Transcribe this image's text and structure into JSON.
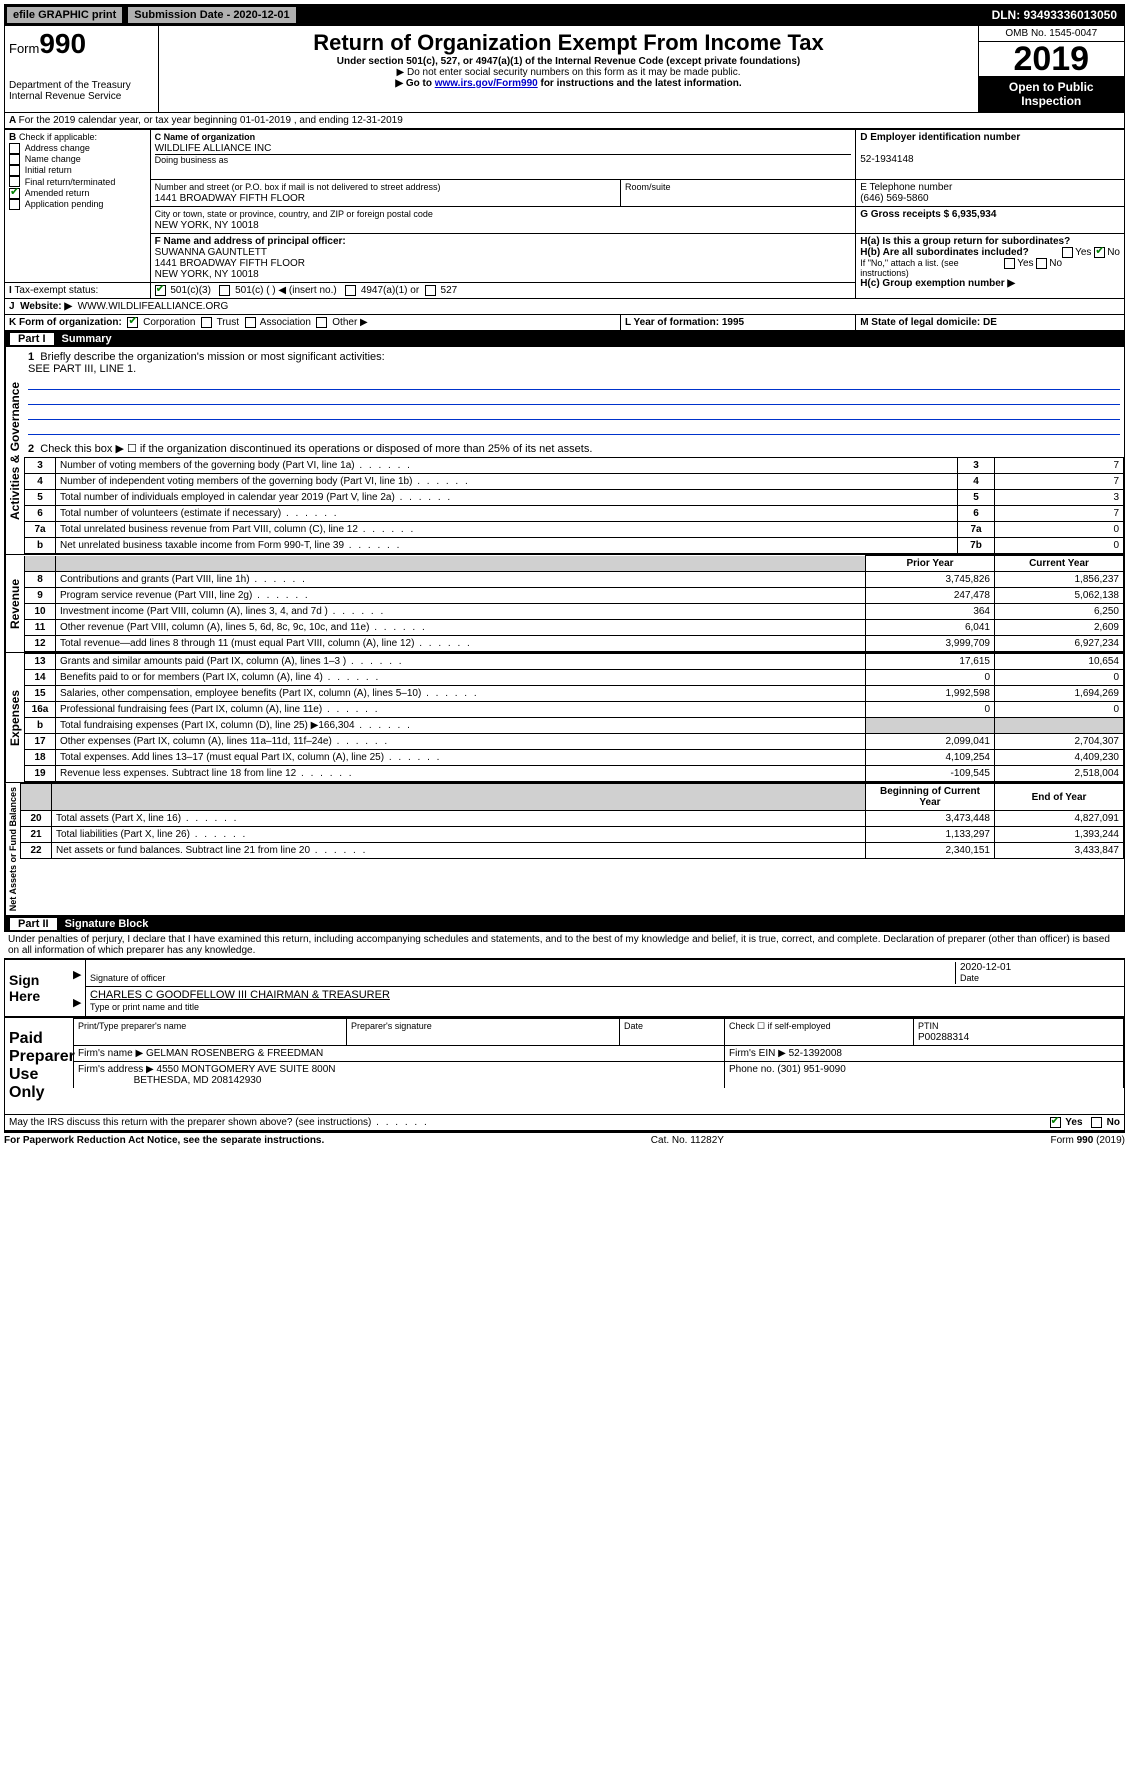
{
  "topbar": {
    "efile": "efile GRAPHIC print",
    "submission_label": "Submission Date - 2020-12-01",
    "dln": "DLN: 93493336013050"
  },
  "header": {
    "form_label": "Form",
    "form_number": "990",
    "dept": "Department of the Treasury",
    "irs": "Internal Revenue Service",
    "title": "Return of Organization Exempt From Income Tax",
    "subtitle": "Under section 501(c), 527, or 4947(a)(1) of the Internal Revenue Code (except private foundations)",
    "note1": "▶ Do not enter social security numbers on this form as it may be made public.",
    "note2_pre": "▶ Go to ",
    "note2_link": "www.irs.gov/Form990",
    "note2_post": " for instructions and the latest information.",
    "omb": "OMB No. 1545-0047",
    "year": "2019",
    "open": "Open to Public Inspection"
  },
  "line_a": "For the 2019 calendar year, or tax year beginning 01-01-2019    , and ending 12-31-2019",
  "box_b": {
    "label": "Check if applicable:",
    "items": [
      "Address change",
      "Name change",
      "Initial return",
      "Final return/terminated",
      "Amended return",
      "Application pending"
    ],
    "checked_index": 4
  },
  "box_c": {
    "name_label": "C Name of organization",
    "name": "WILDLIFE ALLIANCE INC",
    "dba": "Doing business as",
    "addr_label": "Number and street (or P.O. box if mail is not delivered to street address)",
    "addr": "1441 BROADWAY FIFTH FLOOR",
    "room": "Room/suite",
    "city_label": "City or town, state or province, country, and ZIP or foreign postal code",
    "city": "NEW YORK, NY  10018"
  },
  "box_d": {
    "label": "D Employer identification number",
    "value": "52-1934148"
  },
  "box_e": {
    "label": "E Telephone number",
    "value": "(646) 569-5860"
  },
  "box_g": {
    "label": "G Gross receipts $ 6,935,934"
  },
  "box_f": {
    "label": "F  Name and address of principal officer:",
    "name": "SUWANNA GAUNTLETT",
    "addr1": "1441 BROADWAY FIFTH FLOOR",
    "addr2": "NEW YORK, NY  10018"
  },
  "box_h": {
    "a": "H(a)  Is this a group return for subordinates?",
    "b": "H(b)  Are all subordinates included?",
    "note": "If \"No,\" attach a list. (see instructions)",
    "c": "H(c)  Group exemption number ▶",
    "yes": "Yes",
    "no": "No"
  },
  "box_i": {
    "label": "Tax-exempt status:",
    "opts": [
      "501(c)(3)",
      "501(c) (   ) ◀ (insert no.)",
      "4947(a)(1) or",
      "527"
    ]
  },
  "box_j": {
    "label": "Website: ▶",
    "value": "WWW.WILDLIFEALLIANCE.ORG"
  },
  "box_k": {
    "label": "K Form of organization:",
    "opts": [
      "Corporation",
      "Trust",
      "Association",
      "Other ▶"
    ]
  },
  "box_l": {
    "label": "L Year of formation: 1995"
  },
  "box_m": {
    "label": "M State of legal domicile: DE"
  },
  "part1": {
    "bar": "Part I",
    "title": "Summary",
    "q1": "Briefly describe the organization's mission or most significant activities:",
    "q1v": "SEE PART III, LINE 1.",
    "q2": "Check this box ▶ ☐  if the organization discontinued its operations or disposed of more than 25% of its net assets.",
    "rows_single": [
      {
        "n": "3",
        "t": "Number of voting members of the governing body (Part VI, line 1a)",
        "b": "3",
        "v": "7"
      },
      {
        "n": "4",
        "t": "Number of independent voting members of the governing body (Part VI, line 1b)",
        "b": "4",
        "v": "7"
      },
      {
        "n": "5",
        "t": "Total number of individuals employed in calendar year 2019 (Part V, line 2a)",
        "b": "5",
        "v": "3"
      },
      {
        "n": "6",
        "t": "Total number of volunteers (estimate if necessary)",
        "b": "6",
        "v": "7"
      },
      {
        "n": "7a",
        "t": "Total unrelated business revenue from Part VIII, column (C), line 12",
        "b": "7a",
        "v": "0"
      },
      {
        "n": "b",
        "t": "Net unrelated business taxable income from Form 990-T, line 39",
        "b": "7b",
        "v": "0"
      }
    ],
    "col_headers": {
      "prior": "Prior Year",
      "current": "Current Year",
      "boy": "Beginning of Current Year",
      "eoy": "End of Year"
    },
    "vert": {
      "ag": "Activities & Governance",
      "rev": "Revenue",
      "exp": "Expenses",
      "na": "Net Assets or Fund Balances"
    },
    "rows_two": [
      {
        "n": "8",
        "t": "Contributions and grants (Part VIII, line 1h)",
        "p": "3,745,826",
        "c": "1,856,237"
      },
      {
        "n": "9",
        "t": "Program service revenue (Part VIII, line 2g)",
        "p": "247,478",
        "c": "5,062,138"
      },
      {
        "n": "10",
        "t": "Investment income (Part VIII, column (A), lines 3, 4, and 7d )",
        "p": "364",
        "c": "6,250"
      },
      {
        "n": "11",
        "t": "Other revenue (Part VIII, column (A), lines 5, 6d, 8c, 9c, 10c, and 11e)",
        "p": "6,041",
        "c": "2,609"
      },
      {
        "n": "12",
        "t": "Total revenue—add lines 8 through 11 (must equal Part VIII, column (A), line 12)",
        "p": "3,999,709",
        "c": "6,927,234"
      },
      {
        "n": "13",
        "t": "Grants and similar amounts paid (Part IX, column (A), lines 1–3 )",
        "p": "17,615",
        "c": "10,654"
      },
      {
        "n": "14",
        "t": "Benefits paid to or for members (Part IX, column (A), line 4)",
        "p": "0",
        "c": "0"
      },
      {
        "n": "15",
        "t": "Salaries, other compensation, employee benefits (Part IX, column (A), lines 5–10)",
        "p": "1,992,598",
        "c": "1,694,269"
      },
      {
        "n": "16a",
        "t": "Professional fundraising fees (Part IX, column (A), line 11e)",
        "p": "0",
        "c": "0"
      },
      {
        "n": "b",
        "t": "Total fundraising expenses (Part IX, column (D), line 25) ▶166,304",
        "p": "",
        "c": ""
      },
      {
        "n": "17",
        "t": "Other expenses (Part IX, column (A), lines 11a–11d, 11f–24e)",
        "p": "2,099,041",
        "c": "2,704,307"
      },
      {
        "n": "18",
        "t": "Total expenses. Add lines 13–17 (must equal Part IX, column (A), line 25)",
        "p": "4,109,254",
        "c": "4,409,230"
      },
      {
        "n": "19",
        "t": "Revenue less expenses. Subtract line 18 from line 12",
        "p": "-109,545",
        "c": "2,518,004"
      },
      {
        "n": "20",
        "t": "Total assets (Part X, line 16)",
        "p": "3,473,448",
        "c": "4,827,091"
      },
      {
        "n": "21",
        "t": "Total liabilities (Part X, line 26)",
        "p": "1,133,297",
        "c": "1,393,244"
      },
      {
        "n": "22",
        "t": "Net assets or fund balances. Subtract line 21 from line 20",
        "p": "2,340,151",
        "c": "3,433,847"
      }
    ]
  },
  "part2": {
    "bar": "Part II",
    "title": "Signature Block",
    "decl": "Under penalties of perjury, I declare that I have examined this return, including accompanying schedules and statements, and to the best of my knowledge and belief, it is true, correct, and complete. Declaration of preparer (other than officer) is based on all information of which preparer has any knowledge.",
    "sign_here": "Sign Here",
    "sig_officer": "Signature of officer",
    "date": "2020-12-01",
    "date_label": "Date",
    "officer_name": "CHARLES C GOODFELLOW III  CHAIRMAN & TREASURER",
    "type_name": "Type or print name and title",
    "paid": "Paid Preparer Use Only",
    "prep_name_label": "Print/Type preparer's name",
    "prep_sig_label": "Preparer's signature",
    "check_self": "Check ☐ if self-employed",
    "ptin_label": "PTIN",
    "ptin": "P00288314",
    "firm_name_label": "Firm's name    ▶",
    "firm_name": "GELMAN ROSENBERG & FREEDMAN",
    "firm_ein": "Firm's EIN ▶ 52-1392008",
    "firm_addr_label": "Firm's address ▶",
    "firm_addr": "4550 MONTGOMERY AVE SUITE 800N",
    "firm_city": "BETHESDA, MD  208142930",
    "phone": "Phone no. (301) 951-9090",
    "discuss": "May the IRS discuss this return with the preparer shown above? (see instructions)",
    "yes": "Yes",
    "no": "No"
  },
  "footer": {
    "left": "For Paperwork Reduction Act Notice, see the separate instructions.",
    "mid": "Cat. No. 11282Y",
    "right": "Form 990 (2019)"
  }
}
